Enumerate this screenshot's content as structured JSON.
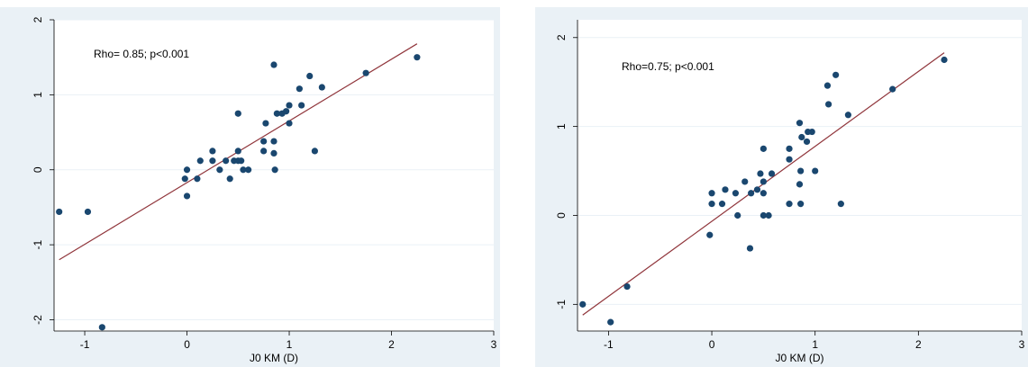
{
  "chart_data": [
    {
      "type": "scatter",
      "xlabel": "J0 KM (D)",
      "ylabel": "",
      "annotation": "Rho= 0.85; p<0.001",
      "xlim": [
        -1.3,
        3.0
      ],
      "ylim": [
        -2.15,
        2.0
      ],
      "xticks": [
        -1,
        0,
        1,
        2,
        3
      ],
      "yticks": [
        -2,
        -1,
        0,
        1,
        2
      ],
      "grid": "horizontal",
      "fit_line": {
        "x": [
          -1.25,
          2.25
        ],
        "y": [
          -1.2,
          1.68
        ]
      },
      "points": [
        {
          "x": -1.25,
          "y": -0.56
        },
        {
          "x": -0.97,
          "y": -0.56
        },
        {
          "x": -0.83,
          "y": -2.1
        },
        {
          "x": -0.02,
          "y": -0.12
        },
        {
          "x": 0.0,
          "y": 0.0
        },
        {
          "x": 0.0,
          "y": -0.35
        },
        {
          "x": 0.1,
          "y": -0.12
        },
        {
          "x": 0.13,
          "y": 0.12
        },
        {
          "x": 0.25,
          "y": 0.12
        },
        {
          "x": 0.25,
          "y": 0.25
        },
        {
          "x": 0.32,
          "y": 0.0
        },
        {
          "x": 0.38,
          "y": 0.12
        },
        {
          "x": 0.42,
          "y": -0.12
        },
        {
          "x": 0.46,
          "y": 0.12
        },
        {
          "x": 0.5,
          "y": 0.25
        },
        {
          "x": 0.5,
          "y": 0.12
        },
        {
          "x": 0.5,
          "y": 0.75
        },
        {
          "x": 0.53,
          "y": 0.12
        },
        {
          "x": 0.55,
          "y": 0.0
        },
        {
          "x": 0.6,
          "y": 0.0
        },
        {
          "x": 0.75,
          "y": 0.25
        },
        {
          "x": 0.75,
          "y": 0.38
        },
        {
          "x": 0.77,
          "y": 0.62
        },
        {
          "x": 0.85,
          "y": 0.38
        },
        {
          "x": 0.85,
          "y": 0.22
        },
        {
          "x": 0.86,
          "y": 0.0
        },
        {
          "x": 0.88,
          "y": 0.75
        },
        {
          "x": 0.85,
          "y": 1.4
        },
        {
          "x": 0.93,
          "y": 0.75
        },
        {
          "x": 0.97,
          "y": 0.78
        },
        {
          "x": 1.0,
          "y": 0.86
        },
        {
          "x": 1.0,
          "y": 0.62
        },
        {
          "x": 1.1,
          "y": 1.08
        },
        {
          "x": 1.12,
          "y": 0.86
        },
        {
          "x": 1.2,
          "y": 1.25
        },
        {
          "x": 1.25,
          "y": 0.25
        },
        {
          "x": 1.32,
          "y": 1.1
        },
        {
          "x": 1.75,
          "y": 1.29
        },
        {
          "x": 2.25,
          "y": 1.5
        }
      ]
    },
    {
      "type": "scatter",
      "xlabel": "J0 KM (D)",
      "ylabel": "",
      "annotation": "Rho=0.75; p<0.001",
      "xlim": [
        -1.3,
        3.0
      ],
      "ylim": [
        -1.3,
        2.2
      ],
      "xticks": [
        -1,
        0,
        1,
        2,
        3
      ],
      "yticks": [
        -1,
        0,
        1,
        2
      ],
      "grid": "horizontal",
      "fit_line": {
        "x": [
          -1.25,
          2.25
        ],
        "y": [
          -1.12,
          1.83
        ]
      },
      "points": [
        {
          "x": -1.25,
          "y": -1.0
        },
        {
          "x": -0.98,
          "y": -1.2
        },
        {
          "x": -0.82,
          "y": -0.8
        },
        {
          "x": -0.02,
          "y": -0.22
        },
        {
          "x": 0.0,
          "y": 0.25
        },
        {
          "x": 0.0,
          "y": 0.13
        },
        {
          "x": 0.1,
          "y": 0.13
        },
        {
          "x": 0.13,
          "y": 0.29
        },
        {
          "x": 0.23,
          "y": 0.25
        },
        {
          "x": 0.25,
          "y": 0.0
        },
        {
          "x": 0.32,
          "y": 0.38
        },
        {
          "x": 0.37,
          "y": -0.37
        },
        {
          "x": 0.38,
          "y": 0.25
        },
        {
          "x": 0.44,
          "y": 0.29
        },
        {
          "x": 0.47,
          "y": 0.47
        },
        {
          "x": 0.5,
          "y": 0.75
        },
        {
          "x": 0.5,
          "y": 0.25
        },
        {
          "x": 0.5,
          "y": 0.38
        },
        {
          "x": 0.5,
          "y": 0.0
        },
        {
          "x": 0.55,
          "y": 0.0
        },
        {
          "x": 0.58,
          "y": 0.47
        },
        {
          "x": 0.75,
          "y": 0.63
        },
        {
          "x": 0.75,
          "y": 0.75
        },
        {
          "x": 0.75,
          "y": 0.13
        },
        {
          "x": 0.85,
          "y": 1.04
        },
        {
          "x": 0.85,
          "y": 0.35
        },
        {
          "x": 0.86,
          "y": 0.5
        },
        {
          "x": 0.86,
          "y": 0.13
        },
        {
          "x": 0.87,
          "y": 0.88
        },
        {
          "x": 0.92,
          "y": 0.83
        },
        {
          "x": 0.93,
          "y": 0.94
        },
        {
          "x": 0.97,
          "y": 0.94
        },
        {
          "x": 1.0,
          "y": 0.5
        },
        {
          "x": 1.12,
          "y": 1.46
        },
        {
          "x": 1.13,
          "y": 1.25
        },
        {
          "x": 1.2,
          "y": 1.58
        },
        {
          "x": 1.25,
          "y": 0.13
        },
        {
          "x": 1.32,
          "y": 1.13
        },
        {
          "x": 1.75,
          "y": 1.42
        },
        {
          "x": 2.25,
          "y": 1.75
        }
      ]
    }
  ],
  "colors": {
    "background": "#eaf1f6",
    "plot": "#ffffff",
    "marker": "#1a476f",
    "fit_line": "#90353b",
    "grid": "#eaf1f6"
  }
}
